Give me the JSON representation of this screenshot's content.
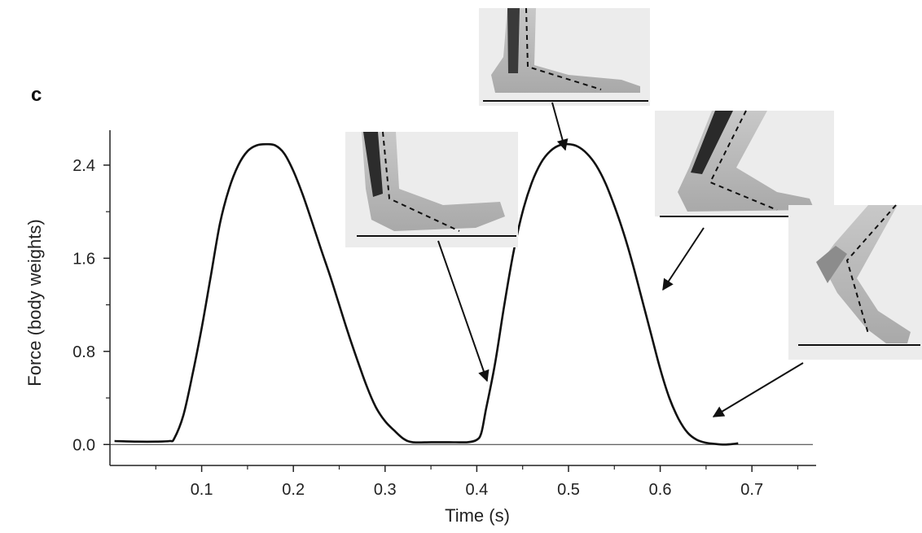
{
  "panel_label": "c",
  "chart_data": {
    "type": "line",
    "title": "",
    "xlabel": "Time (s)",
    "ylabel": "Force (body weights)",
    "xlim": [
      0.0,
      0.77
    ],
    "ylim": [
      -0.18,
      2.7
    ],
    "xticks": [
      0.1,
      0.2,
      0.3,
      0.4,
      0.5,
      0.6,
      0.7
    ],
    "xtick_labels": [
      "0.1",
      "0.2",
      "0.3",
      "0.4",
      "0.5",
      "0.6",
      "0.7"
    ],
    "yticks": [
      0.0,
      0.8,
      1.6,
      2.4
    ],
    "ytick_labels": [
      "0.0",
      "0.8",
      "1.6",
      "2.4"
    ],
    "grid": false,
    "series": [
      {
        "x": [
          0.005,
          0.03,
          0.05,
          0.065,
          0.07,
          0.08,
          0.09,
          0.1,
          0.11,
          0.12,
          0.13,
          0.14,
          0.15,
          0.16,
          0.17,
          0.18,
          0.19,
          0.2,
          0.21,
          0.22,
          0.23,
          0.24,
          0.25,
          0.26,
          0.27,
          0.28,
          0.29,
          0.3,
          0.31,
          0.32,
          0.33,
          0.35,
          0.37,
          0.39,
          0.4,
          0.405,
          0.41,
          0.42,
          0.43,
          0.44,
          0.45,
          0.46,
          0.47,
          0.48,
          0.49,
          0.5,
          0.51,
          0.52,
          0.53,
          0.54,
          0.55,
          0.56,
          0.57,
          0.58,
          0.59,
          0.6,
          0.61,
          0.62,
          0.63,
          0.64,
          0.65,
          0.66,
          0.67,
          0.68,
          0.685
        ],
        "y": [
          0.03,
          0.025,
          0.025,
          0.03,
          0.05,
          0.25,
          0.6,
          1.0,
          1.45,
          1.9,
          2.2,
          2.4,
          2.52,
          2.57,
          2.58,
          2.57,
          2.5,
          2.35,
          2.15,
          1.92,
          1.68,
          1.45,
          1.2,
          0.95,
          0.72,
          0.5,
          0.32,
          0.2,
          0.12,
          0.05,
          0.02,
          0.02,
          0.02,
          0.02,
          0.04,
          0.1,
          0.3,
          0.7,
          1.2,
          1.65,
          2.0,
          2.25,
          2.42,
          2.52,
          2.57,
          2.58,
          2.56,
          2.5,
          2.4,
          2.25,
          2.05,
          1.82,
          1.55,
          1.25,
          0.95,
          0.65,
          0.4,
          0.22,
          0.1,
          0.04,
          0.015,
          0.005,
          0.0,
          0.005,
          0.01
        ]
      }
    ],
    "annotations": [
      {
        "type": "foot-illustration",
        "stance": "flat foot",
        "points_to": {
          "x": 0.5,
          "y": 2.58
        }
      },
      {
        "type": "foot-illustration",
        "stance": "heel strike",
        "points_to": {
          "x": 0.405,
          "y": 0.55
        }
      },
      {
        "type": "foot-illustration",
        "stance": "heel rise",
        "points_to": {
          "x": 0.578,
          "y": 1.35
        }
      },
      {
        "type": "foot-illustration",
        "stance": "toe off",
        "points_to": {
          "x": 0.64,
          "y": 0.25
        }
      }
    ]
  }
}
